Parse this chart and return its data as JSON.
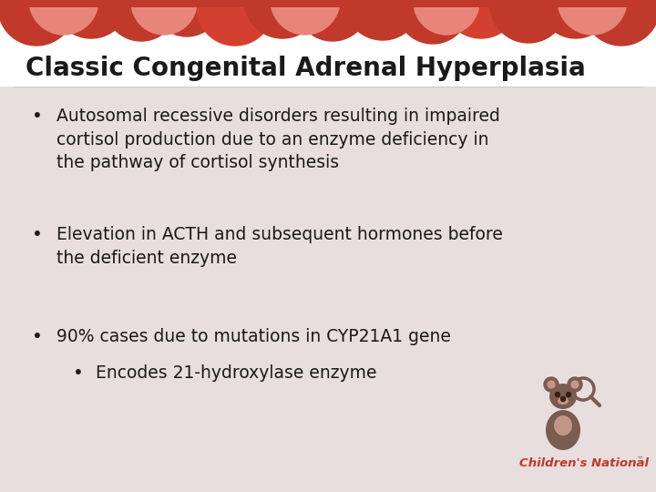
{
  "title": "Classic Congenital Adrenal Hyperplasia",
  "title_fontsize": 20,
  "title_color": "#1a1a1a",
  "title_bg_color": "#ffffff",
  "body_bg_color": "#e8dedd",
  "bullet_points": [
    {
      "level": 1,
      "text": "Autosomal recessive disorders resulting in impaired\ncortisol production due to an enzyme deficiency in\nthe pathway of cortisol synthesis"
    },
    {
      "level": 1,
      "text": "Elevation in ACTH and subsequent hormones before\nthe deficient enzyme"
    },
    {
      "level": 1,
      "text": "90% cases due to mutations in CYP21A1 gene"
    },
    {
      "level": 2,
      "text": "Encodes 21-hydroxylase enzyme"
    }
  ],
  "bullet_color": "#1a1a1a",
  "bullet_fontsize": 13.5,
  "logo_text": "Children's National",
  "logo_text_color": "#c0392b",
  "header_red": "#c0392b",
  "header_salmon": "#e8857a",
  "header_orange_red": "#d44030"
}
